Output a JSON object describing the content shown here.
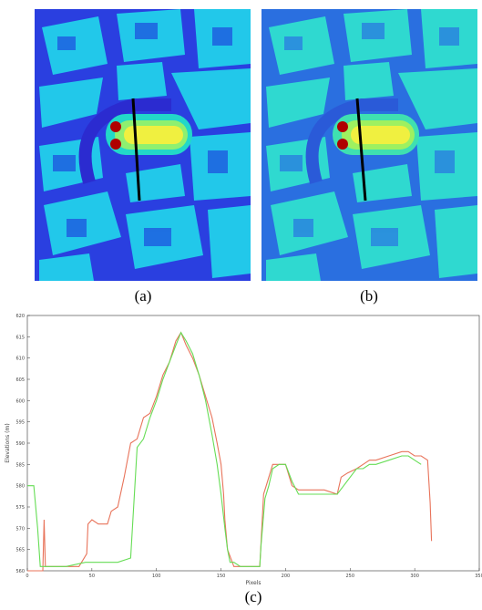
{
  "captions": {
    "a": "(a)",
    "b": "(b)",
    "c": "(c)"
  },
  "panel_a": {
    "colormap": "jet",
    "background": "#2a3fe0",
    "building": "#22c8ea",
    "track": "#2b2bd0"
  },
  "panel_b": {
    "colormap": "jet",
    "background": "#2a6fe0",
    "building": "#2fd9d0",
    "track": "#2a5ad8"
  },
  "chart_data": {
    "type": "line",
    "xlabel": "Pixels",
    "ylabel": "Elevations (m)",
    "xlim": [
      0,
      350
    ],
    "ylim": [
      560,
      620
    ],
    "x_ticks": [
      "0",
      "50",
      "100",
      "150",
      "200",
      "250",
      "300",
      "350"
    ],
    "y_ticks": [
      "560",
      "565",
      "570",
      "575",
      "580",
      "585",
      "590",
      "595",
      "600",
      "605",
      "610",
      "615",
      "620"
    ],
    "grid": false,
    "series": [
      {
        "color": "#e8735a",
        "x": [
          0,
          12,
          13,
          14,
          18,
          40,
          46,
          47,
          50,
          55,
          62,
          65,
          70,
          75,
          80,
          85,
          90,
          95,
          100,
          105,
          110,
          115,
          119,
          123,
          128,
          133,
          138,
          143,
          147,
          150,
          152,
          153,
          155,
          160,
          170,
          180,
          183,
          185,
          190,
          195,
          200,
          205,
          210,
          215,
          220,
          230,
          240,
          243,
          248,
          255,
          260,
          265,
          270,
          280,
          290,
          295,
          300,
          305,
          310,
          312,
          313
        ],
        "values": [
          560,
          560,
          572,
          561,
          561,
          561,
          564,
          571,
          572,
          571,
          571,
          574,
          575,
          582,
          590,
          591,
          596,
          597,
          601,
          606,
          609,
          614,
          616,
          613,
          610,
          606,
          601,
          596,
          590,
          585,
          578,
          572,
          565,
          561,
          561,
          561,
          578,
          580,
          585,
          585,
          585,
          580,
          579,
          579,
          579,
          579,
          578,
          582,
          583,
          584,
          585,
          586,
          586,
          587,
          588,
          588,
          587,
          587,
          586,
          576,
          567
        ]
      },
      {
        "color": "#66dd55",
        "x": [
          0,
          5,
          8,
          10,
          15,
          30,
          45,
          50,
          70,
          80,
          85,
          90,
          95,
          100,
          105,
          110,
          115,
          119,
          123,
          128,
          133,
          138,
          143,
          147,
          150,
          153,
          155,
          157,
          160,
          165,
          170,
          180,
          181,
          184,
          187,
          190,
          195,
          200,
          205,
          210,
          215,
          220,
          230,
          240,
          245,
          250,
          255,
          260,
          265,
          270,
          280,
          290,
          295,
          300,
          305
        ],
        "values": [
          580,
          580,
          570,
          561,
          561,
          561,
          562,
          562,
          562,
          563,
          589,
          591,
          596,
          600,
          605,
          609,
          613,
          616,
          614,
          611,
          606,
          600,
          592,
          585,
          578,
          570,
          565,
          562,
          562,
          561,
          561,
          561,
          566,
          577,
          580,
          584,
          585,
          585,
          581,
          578,
          578,
          578,
          578,
          578,
          580,
          582,
          584,
          584,
          585,
          585,
          586,
          587,
          587,
          586,
          585
        ]
      }
    ]
  }
}
